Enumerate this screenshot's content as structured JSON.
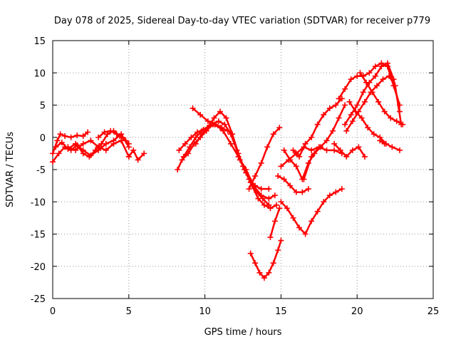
{
  "chart_data": {
    "type": "scatter",
    "title": "Day 078 of 2025, Sidereal Day-to-day VTEC variation (SDTVAR) for receiver p779",
    "xlabel": "GPS time / hours",
    "ylabel": "SDTVAR / TECUs",
    "xlim": [
      0,
      25
    ],
    "ylim": [
      -25,
      15
    ],
    "xticks": [
      0,
      5,
      10,
      15,
      20,
      25
    ],
    "yticks": [
      -25,
      -20,
      -15,
      -10,
      -5,
      0,
      5,
      10,
      15
    ],
    "grid": true,
    "marker": "plus",
    "color": "#ff0000",
    "series": [
      {
        "x": [
          0.0,
          0.3,
          0.5,
          0.8,
          1.2,
          1.6,
          2.0,
          2.3
        ],
        "y": [
          -2.5,
          -0.5,
          0.5,
          0.2,
          0.0,
          0.3,
          0.2,
          0.8
        ]
      },
      {
        "x": [
          0.0,
          0.4,
          0.8,
          1.2,
          1.6,
          2.0,
          2.4,
          2.8,
          3.2,
          3.6,
          4.0,
          4.4,
          4.8
        ],
        "y": [
          -3.8,
          -2.5,
          -1.5,
          -2.0,
          -1.2,
          -2.5,
          -3.0,
          -2.0,
          -1.0,
          0.5,
          1.0,
          0.2,
          -0.5
        ]
      },
      {
        "x": [
          0.2,
          0.6,
          1.0,
          1.5,
          2.0,
          2.5,
          3.0,
          3.5,
          4.0,
          4.5,
          5.0
        ],
        "y": [
          -1.5,
          -0.8,
          -1.8,
          -1.0,
          -2.0,
          -2.8,
          -2.0,
          -1.0,
          -0.5,
          0.5,
          -1.5
        ]
      },
      {
        "x": [
          1.0,
          1.5,
          2.0,
          2.5,
          3.0,
          3.5,
          4.0,
          4.5,
          5.0
        ],
        "y": [
          -1.5,
          -2.0,
          -1.0,
          -0.5,
          -1.5,
          -2.0,
          -1.0,
          -0.5,
          -3.0
        ]
      },
      {
        "x": [
          3.0,
          3.4,
          3.8,
          4.2,
          4.6,
          5.0
        ],
        "y": [
          0.0,
          0.8,
          1.0,
          0.5,
          0.0,
          -1.0
        ]
      },
      {
        "x": [
          5.0,
          5.3,
          5.6,
          6.0
        ],
        "y": [
          -3.0,
          -2.0,
          -3.5,
          -2.5
        ]
      },
      {
        "x": [
          8.2,
          8.6,
          9.0,
          9.4,
          9.8,
          10.2,
          10.6,
          11.0
        ],
        "y": [
          -5.0,
          -3.0,
          -1.5,
          0.0,
          1.0,
          1.5,
          2.0,
          1.5
        ]
      },
      {
        "x": [
          8.3,
          8.7,
          9.1,
          9.5,
          9.9,
          10.3,
          10.7,
          11.1,
          11.5
        ],
        "y": [
          -2.0,
          -1.0,
          0.0,
          0.8,
          1.2,
          1.8,
          2.0,
          1.5,
          1.0
        ]
      },
      {
        "x": [
          8.5,
          8.9,
          9.3,
          9.7,
          10.1,
          10.5,
          10.9,
          11.3,
          11.7,
          12.1,
          12.5,
          12.9,
          13.3,
          13.7,
          14.2
        ],
        "y": [
          -3.5,
          -2.5,
          -1.0,
          0.0,
          1.0,
          2.0,
          2.5,
          2.0,
          0.5,
          -2.0,
          -4.5,
          -6.5,
          -7.5,
          -8.0,
          -8.0
        ]
      },
      {
        "x": [
          9.2,
          9.7,
          10.2,
          10.7,
          11.2,
          11.7,
          12.2,
          12.7,
          13.2,
          13.7,
          14.2,
          14.6
        ],
        "y": [
          4.5,
          3.5,
          2.5,
          2.0,
          1.0,
          -1.0,
          -3.0,
          -5.0,
          -7.5,
          -9.0,
          -9.5,
          -9.0
        ]
      },
      {
        "x": [
          9.4,
          9.8,
          10.2,
          10.6,
          11.0,
          11.4,
          11.8,
          12.2,
          12.6,
          13.0,
          13.4,
          13.8,
          14.2
        ],
        "y": [
          -1.0,
          0.5,
          1.5,
          3.0,
          4.0,
          3.0,
          0.5,
          -2.5,
          -5.0,
          -7.0,
          -8.5,
          -9.5,
          -10.5
        ]
      },
      {
        "x": [
          12.3,
          12.7,
          13.1,
          13.5,
          13.9,
          14.3,
          14.7
        ],
        "y": [
          -3.5,
          -5.5,
          -7.5,
          -9.5,
          -10.5,
          -11.0,
          -10.5
        ]
      },
      {
        "x": [
          12.9,
          13.3,
          13.7,
          14.1,
          14.5,
          14.9
        ],
        "y": [
          -8.0,
          -6.0,
          -4.0,
          -1.5,
          0.5,
          1.5
        ]
      },
      {
        "x": [
          13.0,
          13.3,
          13.6,
          13.9,
          14.2,
          14.5,
          14.8,
          15.0
        ],
        "y": [
          -18.0,
          -19.5,
          -21.0,
          -21.8,
          -21.0,
          -19.5,
          -17.5,
          -16.0
        ]
      },
      {
        "x": [
          14.3,
          14.6,
          14.9
        ],
        "y": [
          -15.5,
          -13.0,
          -11.0
        ]
      },
      {
        "x": [
          15.0,
          15.4,
          15.8,
          16.2,
          16.6,
          17.0,
          17.4,
          17.8,
          18.2,
          18.6,
          19.0
        ],
        "y": [
          -10.0,
          -11.0,
          -12.5,
          -14.0,
          -15.0,
          -13.0,
          -11.5,
          -10.0,
          -9.0,
          -8.5,
          -8.0
        ]
      },
      {
        "x": [
          14.8,
          15.2,
          15.6,
          16.0,
          16.4,
          16.8
        ],
        "y": [
          -6.0,
          -6.5,
          -7.5,
          -8.5,
          -8.5,
          -8.0
        ]
      },
      {
        "x": [
          15.0,
          15.5,
          16.0,
          16.5,
          17.0,
          17.5
        ],
        "y": [
          -4.5,
          -3.5,
          -2.5,
          -1.5,
          -2.0,
          -1.5
        ]
      },
      {
        "x": [
          15.2,
          15.6,
          16.0,
          16.4,
          16.8,
          17.2,
          17.6,
          18.0,
          18.4,
          18.8,
          19.2
        ],
        "y": [
          -2.0,
          -3.5,
          -4.5,
          -6.5,
          -4.0,
          -2.5,
          -1.5,
          -0.5,
          1.0,
          3.0,
          5.0
        ]
      },
      {
        "x": [
          15.8,
          16.2,
          16.6,
          17.0,
          17.4,
          17.8,
          18.2,
          18.6,
          19.0
        ],
        "y": [
          -2.0,
          -3.0,
          -1.0,
          0.0,
          2.0,
          3.5,
          4.5,
          5.0,
          6.0
        ]
      },
      {
        "x": [
          16.5,
          17.0,
          17.5,
          18.0,
          18.5,
          19.0
        ],
        "y": [
          -6.5,
          -3.0,
          -1.5,
          -2.0,
          -2.0,
          -2.5
        ]
      },
      {
        "x": [
          18.8,
          19.2,
          19.6,
          20.0,
          20.4,
          20.8,
          21.2,
          21.6,
          22.0,
          22.4,
          22.8
        ],
        "y": [
          6.0,
          7.5,
          9.0,
          9.5,
          9.5,
          10.0,
          11.0,
          11.5,
          11.0,
          8.0,
          5.0
        ]
      },
      {
        "x": [
          19.2,
          19.6,
          20.0,
          20.4,
          20.8,
          21.2,
          21.6,
          22.0,
          22.4,
          22.8
        ],
        "y": [
          2.0,
          3.5,
          5.0,
          7.0,
          8.5,
          9.5,
          11.0,
          11.5,
          9.0,
          4.0
        ]
      },
      {
        "x": [
          19.5,
          19.9,
          20.3,
          20.7,
          21.1,
          21.5,
          21.9,
          22.3,
          22.8
        ],
        "y": [
          5.5,
          4.0,
          3.0,
          1.5,
          0.5,
          0.0,
          -1.0,
          -1.5,
          -2.0
        ]
      },
      {
        "x": [
          19.3,
          19.7,
          20.1,
          20.5,
          20.9,
          21.3,
          21.7,
          22.1,
          22.5,
          22.9
        ],
        "y": [
          1.0,
          2.5,
          4.0,
          5.5,
          7.0,
          8.0,
          9.0,
          9.5,
          8.0,
          2.0
        ]
      },
      {
        "x": [
          20.2,
          20.6,
          21.0,
          21.4,
          21.8,
          22.2,
          22.6,
          23.0
        ],
        "y": [
          10.0,
          8.5,
          7.0,
          5.5,
          4.0,
          3.0,
          2.5,
          2.0
        ]
      },
      {
        "x": [
          18.5,
          18.9,
          19.3,
          19.7,
          20.1,
          20.5
        ],
        "y": [
          -1.0,
          -2.0,
          -3.0,
          -2.0,
          -1.5,
          -3.0
        ]
      },
      {
        "x": [
          21.5,
          21.8
        ],
        "y": [
          -0.5,
          -1.0
        ]
      }
    ]
  }
}
